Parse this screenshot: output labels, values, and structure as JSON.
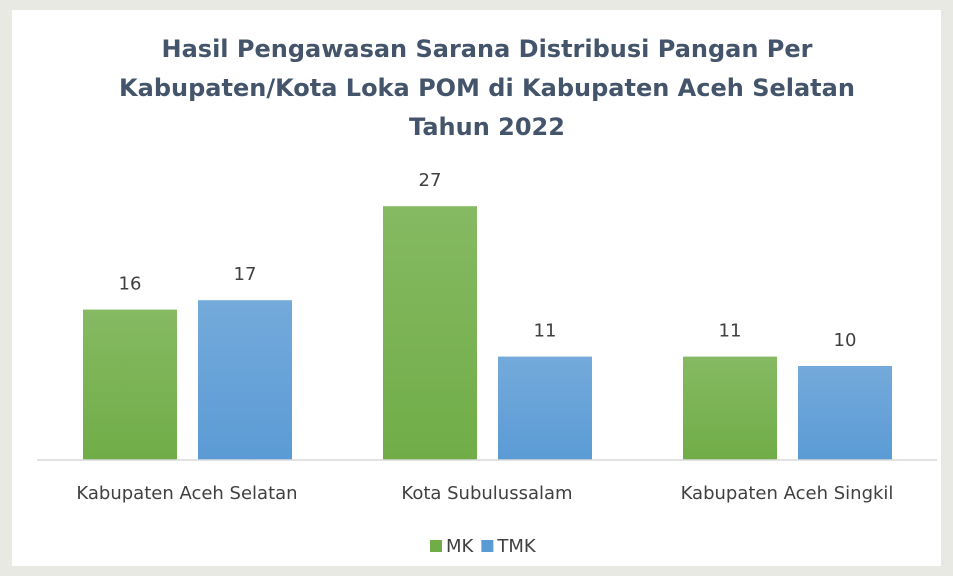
{
  "chart_data": {
    "type": "bar",
    "title": [
      "Hasil Pengawasan Sarana Distribusi Pangan Per",
      "Kabupaten/Kota Loka POM di Kabupaten Aceh Selatan",
      "Tahun 2022"
    ],
    "categories": [
      "Kabupaten Aceh Selatan",
      "Kota Subulussalam",
      "Kabupaten Aceh Singkil"
    ],
    "series": [
      {
        "name": "MK",
        "color": "#70ad47",
        "values": [
          16,
          27,
          11
        ]
      },
      {
        "name": "TMK",
        "color": "#5b9bd5",
        "values": [
          17,
          11,
          10
        ]
      }
    ],
    "ylim": [
      0,
      30
    ],
    "legend": "bottom"
  }
}
